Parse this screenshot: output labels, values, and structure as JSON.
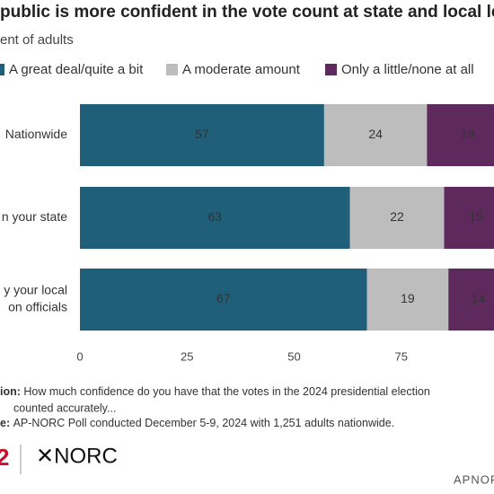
{
  "chart_data": {
    "type": "stacked-bar-horizontal",
    "title": "public is more confident in the vote count at state and local leve",
    "subtitle": "ent of adults",
    "categories": [
      [
        "Nationwide"
      ],
      [
        "n your state"
      ],
      [
        "y your local",
        "on officials"
      ]
    ],
    "series": [
      {
        "name": "A great deal/quite a bit",
        "color": "#1f5f7a",
        "values": [
          57,
          63,
          67
        ]
      },
      {
        "name": "A moderate amount",
        "color": "#bdbdbd",
        "values": [
          24,
          22,
          19
        ]
      },
      {
        "name": "Only a little/none at all",
        "color": "#5e2a5e",
        "values": [
          19,
          15,
          14
        ]
      }
    ],
    "xlim": [
      0,
      100
    ],
    "xticks": [
      0,
      25,
      50,
      75
    ]
  },
  "footer": {
    "question_label": "ion: ",
    "question_lines": [
      "How much confidence do you have that the votes in the 2024 presidential election",
      "counted accurately..."
    ],
    "source_label": "e: ",
    "source_text": "AP-NORC Poll conducted December 5-9, 2024 with 1,251 adults nationwide.",
    "logo_left": "2",
    "logo_right": "✕NORC",
    "credit": "APNOR"
  }
}
